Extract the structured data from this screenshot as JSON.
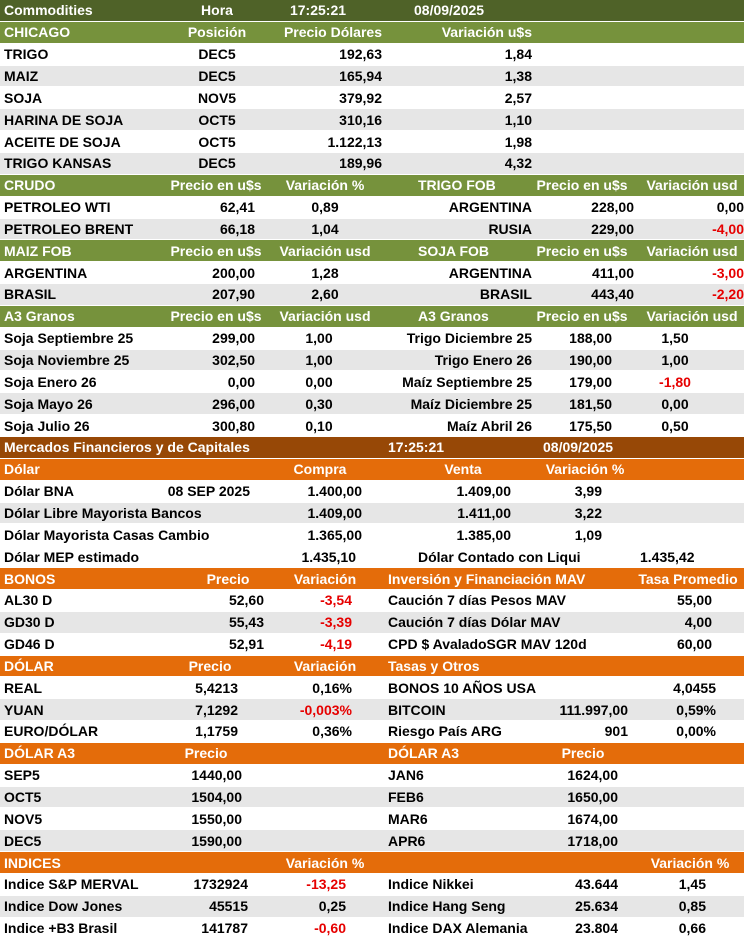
{
  "title": "Commodities",
  "hora_label": "Hora",
  "time": "17:25:21",
  "date": "08/09/2025",
  "chicago": {
    "headers": [
      "CHICAGO",
      "Posición",
      "Precio Dólares",
      "Variación u$s"
    ],
    "rows": [
      [
        "TRIGO",
        "DEC5",
        "192,63",
        "1,84"
      ],
      [
        "MAIZ",
        "DEC5",
        "165,94",
        "1,38"
      ],
      [
        "SOJA",
        "NOV5",
        "379,92",
        "2,57"
      ],
      [
        "HARINA DE SOJA",
        "OCT5",
        "310,16",
        "1,10"
      ],
      [
        "ACEITE DE SOJA",
        "OCT5",
        "1.122,13",
        "1,98"
      ],
      [
        "TRIGO KANSAS",
        "DEC5",
        "189,96",
        "4,32"
      ]
    ]
  },
  "crudo": {
    "headers": [
      "CRUDO",
      "Precio en u$s",
      "Variación %"
    ],
    "rows": [
      [
        "PETROLEO WTI",
        "62,41",
        "0,89"
      ],
      [
        "PETROLEO BRENT",
        "66,18",
        "1,04"
      ]
    ]
  },
  "trigo_fob": {
    "headers": [
      "TRIGO FOB",
      "Precio en u$s",
      "Variación usd"
    ],
    "rows": [
      [
        "ARGENTINA",
        "228,00",
        "0,00"
      ],
      [
        "RUSIA",
        "229,00",
        "-4,00"
      ]
    ]
  },
  "maiz_fob": {
    "headers": [
      "MAIZ FOB",
      "Precio en u$s",
      "Variación usd"
    ],
    "rows": [
      [
        "ARGENTINA",
        "200,00",
        "1,28"
      ],
      [
        "BRASIL",
        "207,90",
        "2,60"
      ]
    ]
  },
  "soja_fob": {
    "headers": [
      "SOJA FOB",
      "Precio en u$s",
      "Variación usd"
    ],
    "rows": [
      [
        "ARGENTINA",
        "411,00",
        "-3,00"
      ],
      [
        "BRASIL",
        "443,40",
        "-2,20"
      ]
    ]
  },
  "a3_left": {
    "headers": [
      "A3 Granos",
      "Precio en u$s",
      "Variación usd"
    ],
    "rows": [
      [
        "Soja Septiembre 25",
        "299,00",
        "1,00"
      ],
      [
        "Soja Noviembre 25",
        "302,50",
        "1,00"
      ],
      [
        "Soja Enero 26",
        "0,00",
        "0,00"
      ],
      [
        "Soja Mayo 26",
        "296,00",
        "0,30"
      ],
      [
        "Soja Julio 26",
        "300,80",
        "0,10"
      ]
    ]
  },
  "a3_right": {
    "headers": [
      "A3 Granos",
      "Precio en u$s",
      "Variación usd"
    ],
    "rows": [
      [
        "Trigo Diciembre 25",
        "188,00",
        "1,50"
      ],
      [
        "Trigo Enero 26",
        "190,00",
        "1,00"
      ],
      [
        "Maíz Septiembre 25",
        "179,00",
        "-1,80"
      ],
      [
        "Maíz Diciembre 25",
        "181,50",
        "0,00"
      ],
      [
        "Maíz Abril 26",
        "175,50",
        "0,50"
      ]
    ]
  },
  "mercados": {
    "title": "Mercados Financieros y de Capitales",
    "time": "17:25:21",
    "date": "08/09/2025"
  },
  "dolar": {
    "headers": [
      "Dólar",
      "Compra",
      "Venta",
      "Variación %"
    ],
    "rows": [
      [
        "Dólar BNA",
        "08 SEP 2025",
        "1.400,00",
        "1.409,00",
        "3,99"
      ],
      [
        "Dólar Libre Mayorista Bancos",
        "",
        "1.409,00",
        "1.411,00",
        "3,22"
      ],
      [
        "Dólar Mayorista Casas Cambio",
        "",
        "1.365,00",
        "1.385,00",
        "1,09"
      ]
    ],
    "mep_label": "Dólar MEP estimado",
    "mep_value": "1.435,10",
    "ccl_label": "Dólar Contado con Liqui",
    "ccl_value": "1.435,42"
  },
  "bonos": {
    "headers": [
      "BONOS",
      "Precio",
      "Variación"
    ],
    "rows": [
      [
        "AL30 D",
        "52,60",
        "-3,54"
      ],
      [
        "GD30 D",
        "55,43",
        "-3,39"
      ],
      [
        "GD46 D",
        "52,91",
        "-4,19"
      ]
    ]
  },
  "mav": {
    "headers": [
      "Inversión y Financiación MAV",
      "Tasa Promedio"
    ],
    "rows": [
      [
        "Caución 7 días Pesos MAV",
        "55,00"
      ],
      [
        "Caución 7 días Dólar MAV",
        "4,00"
      ],
      [
        "CPD $ AvaladoSGR  MAV 120d",
        "60,00"
      ]
    ]
  },
  "dolar_fx": {
    "headers": [
      "DÓLAR",
      "Precio",
      "Variación"
    ],
    "rows": [
      [
        "REAL",
        "5,4213",
        "0,16%"
      ],
      [
        "YUAN",
        "7,1292",
        "-0,003%"
      ],
      [
        "EURO/DÓLAR",
        "1,1759",
        "0,36%"
      ]
    ]
  },
  "tasas": {
    "header": "Tasas y Otros",
    "rows": [
      [
        "BONOS 10 AÑOS USA",
        "",
        "4,0455"
      ],
      [
        "BITCOIN",
        "111.997,00",
        "0,59%"
      ],
      [
        "Riesgo País ARG",
        "901",
        "0,00%"
      ]
    ]
  },
  "dolar_a3_left": {
    "headers": [
      "DÓLAR A3",
      "Precio"
    ],
    "rows": [
      [
        "SEP5",
        "1440,00"
      ],
      [
        "OCT5",
        "1504,00"
      ],
      [
        "NOV5",
        "1550,00"
      ],
      [
        "DEC5",
        "1590,00"
      ]
    ]
  },
  "dolar_a3_right": {
    "headers": [
      "DÓLAR A3",
      "Precio"
    ],
    "rows": [
      [
        "JAN6",
        "1624,00"
      ],
      [
        "FEB6",
        "1650,00"
      ],
      [
        "MAR6",
        "1674,00"
      ],
      [
        "APR6",
        "1718,00"
      ]
    ]
  },
  "indices_left": {
    "headers": [
      "INDICES",
      "Variación %"
    ],
    "rows": [
      [
        "Indice S&P MERVAL",
        "1732924",
        "-13,25"
      ],
      [
        "Indice Dow Jones",
        "45515",
        "0,25"
      ],
      [
        "Indice +B3 Brasil",
        "141787",
        "-0,60"
      ]
    ]
  },
  "indices_right": {
    "headers": [
      "Variación %"
    ],
    "rows": [
      [
        "Indice Nikkei",
        "43.644",
        "1,45"
      ],
      [
        "Indice Hang Seng",
        "25.634",
        "0,85"
      ],
      [
        "Indice DAX Alemania",
        "23.804",
        "0,66"
      ]
    ]
  },
  "colors": {
    "header_green": "#76923c",
    "header_dark_green": "#4f6228",
    "header_brown": "#974806",
    "header_orange": "#e46c0a",
    "row_gray": "#e6e6e6",
    "negative_red": "#e60000"
  }
}
